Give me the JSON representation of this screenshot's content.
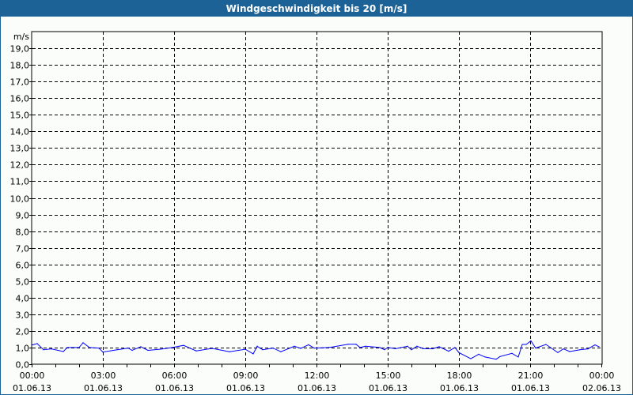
{
  "window": {
    "title": "Windgeschwindigkeit bis 20 [m/s]",
    "title_bar_color": "#1c6296"
  },
  "chart_data": {
    "type": "line",
    "title": "Windgeschwindigkeit bis 20 [m/s]",
    "ylabel": "m/s",
    "ylim": [
      0,
      20
    ],
    "xlim": [
      "01.06.13 00:00",
      "02.06.13 00:00"
    ],
    "grid": true,
    "y_ticks": [
      "0,0",
      "1,0",
      "2,0",
      "3,0",
      "4,0",
      "5,0",
      "6,0",
      "7,0",
      "8,0",
      "9,0",
      "10,0",
      "11,0",
      "12,0",
      "13,0",
      "14,0",
      "15,0",
      "16,0",
      "17,0",
      "18,0",
      "19,0"
    ],
    "x_ticks": [
      {
        "time": "00:00",
        "date": "01.06.13"
      },
      {
        "time": "03:00",
        "date": "01.06.13"
      },
      {
        "time": "06:00",
        "date": "01.06.13"
      },
      {
        "time": "09:00",
        "date": "01.06.13"
      },
      {
        "time": "12:00",
        "date": "01.06.13"
      },
      {
        "time": "15:00",
        "date": "01.06.13"
      },
      {
        "time": "18:00",
        "date": "01.06.13"
      },
      {
        "time": "21:00",
        "date": "01.06.13"
      },
      {
        "time": "00:00",
        "date": "02.06.13"
      }
    ],
    "series_color": "#0000ff",
    "series": [
      {
        "x": [
          "00:00",
          "00:12",
          "00:28",
          "00:48",
          "01:18",
          "01:28",
          "01:58",
          "02:08",
          "02:24",
          "02:48",
          "02:58",
          "03:34",
          "04:02",
          "04:12",
          "04:34",
          "04:52",
          "05:22",
          "05:54",
          "06:22",
          "06:54",
          "07:34",
          "08:18",
          "08:58",
          "09:18",
          "09:28",
          "09:42",
          "10:08",
          "10:28",
          "11:02",
          "11:18",
          "11:38",
          "11:52",
          "12:28",
          "12:38",
          "13:18",
          "13:38",
          "13:48",
          "14:02",
          "14:38",
          "14:50",
          "14:58",
          "15:18",
          "15:48",
          "15:58",
          "16:12",
          "16:28",
          "16:52",
          "17:08",
          "17:32",
          "17:48",
          "17:58",
          "18:28",
          "18:48",
          "19:04",
          "19:32",
          "19:42",
          "20:12",
          "20:28",
          "20:38",
          "20:48",
          "21:00",
          "21:12",
          "21:38",
          "22:08",
          "22:22",
          "22:38",
          "23:04",
          "23:24",
          "23:42",
          "23:52"
        ],
        "values": [
          1.16,
          1.24,
          0.87,
          0.92,
          0.76,
          1.0,
          1.0,
          1.29,
          1.0,
          0.97,
          0.73,
          0.87,
          0.97,
          0.83,
          1.05,
          0.83,
          0.9,
          1.0,
          1.13,
          0.8,
          0.95,
          0.75,
          0.9,
          0.62,
          1.08,
          0.87,
          0.97,
          0.75,
          1.08,
          0.95,
          1.17,
          0.97,
          1.0,
          1.03,
          1.2,
          1.2,
          1.0,
          1.08,
          1.0,
          0.87,
          1.0,
          0.93,
          1.08,
          0.87,
          1.08,
          0.93,
          0.93,
          1.05,
          0.78,
          1.0,
          0.7,
          0.33,
          0.6,
          0.43,
          0.3,
          0.46,
          0.65,
          0.43,
          1.19,
          1.19,
          1.4,
          0.97,
          1.19,
          0.7,
          0.92,
          0.76,
          0.87,
          0.92,
          1.16,
          1.05
        ]
      }
    ]
  }
}
